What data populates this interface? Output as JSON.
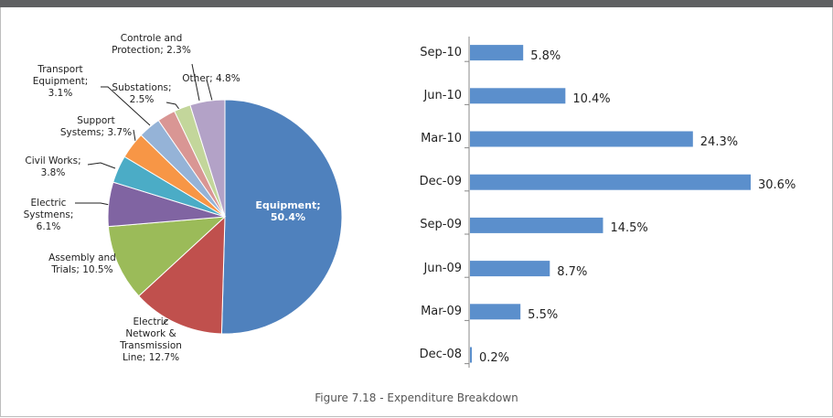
{
  "caption": "Figure 7.18 - Expenditure Breakdown",
  "chart_data": [
    {
      "type": "pie",
      "categories": [
        "Equipment;",
        "Electric Network & Transmission Line;",
        "Assembly and Trials;",
        "Electric Systmens;",
        "Civil Works;",
        "Support Systems;",
        "Transport Equipment;",
        "Substations;",
        "Controle and Protection;",
        "Other;"
      ],
      "values": [
        50.4,
        12.7,
        10.5,
        6.1,
        3.8,
        3.7,
        3.1,
        2.5,
        2.3,
        4.8
      ],
      "value_labels": [
        "50.4%",
        "12.7%",
        "10.5%",
        "6.1%",
        "3.8%",
        "3.7%",
        "3.1%",
        "2.5%",
        "2.3%",
        "4.8%"
      ],
      "colors": [
        "#4f81bd",
        "#c0504d",
        "#9bbb59",
        "#8064a2",
        "#4bacc6",
        "#f79646",
        "#95b3d7",
        "#d99694",
        "#c3d69b",
        "#b3a2c7"
      ]
    },
    {
      "type": "bar",
      "orientation": "horizontal",
      "categories": [
        "Sep-10",
        "Jun-10",
        "Mar-10",
        "Dec-09",
        "Sep-09",
        "Jun-09",
        "Mar-09",
        "Dec-08"
      ],
      "values": [
        5.8,
        10.4,
        24.3,
        30.6,
        14.5,
        8.7,
        5.5,
        0.2
      ],
      "value_labels": [
        "5.8%",
        "10.4%",
        "24.3%",
        "30.6%",
        "14.5%",
        "8.7%",
        "5.5%",
        "0.2%"
      ],
      "color": "#5b8fcc"
    }
  ]
}
